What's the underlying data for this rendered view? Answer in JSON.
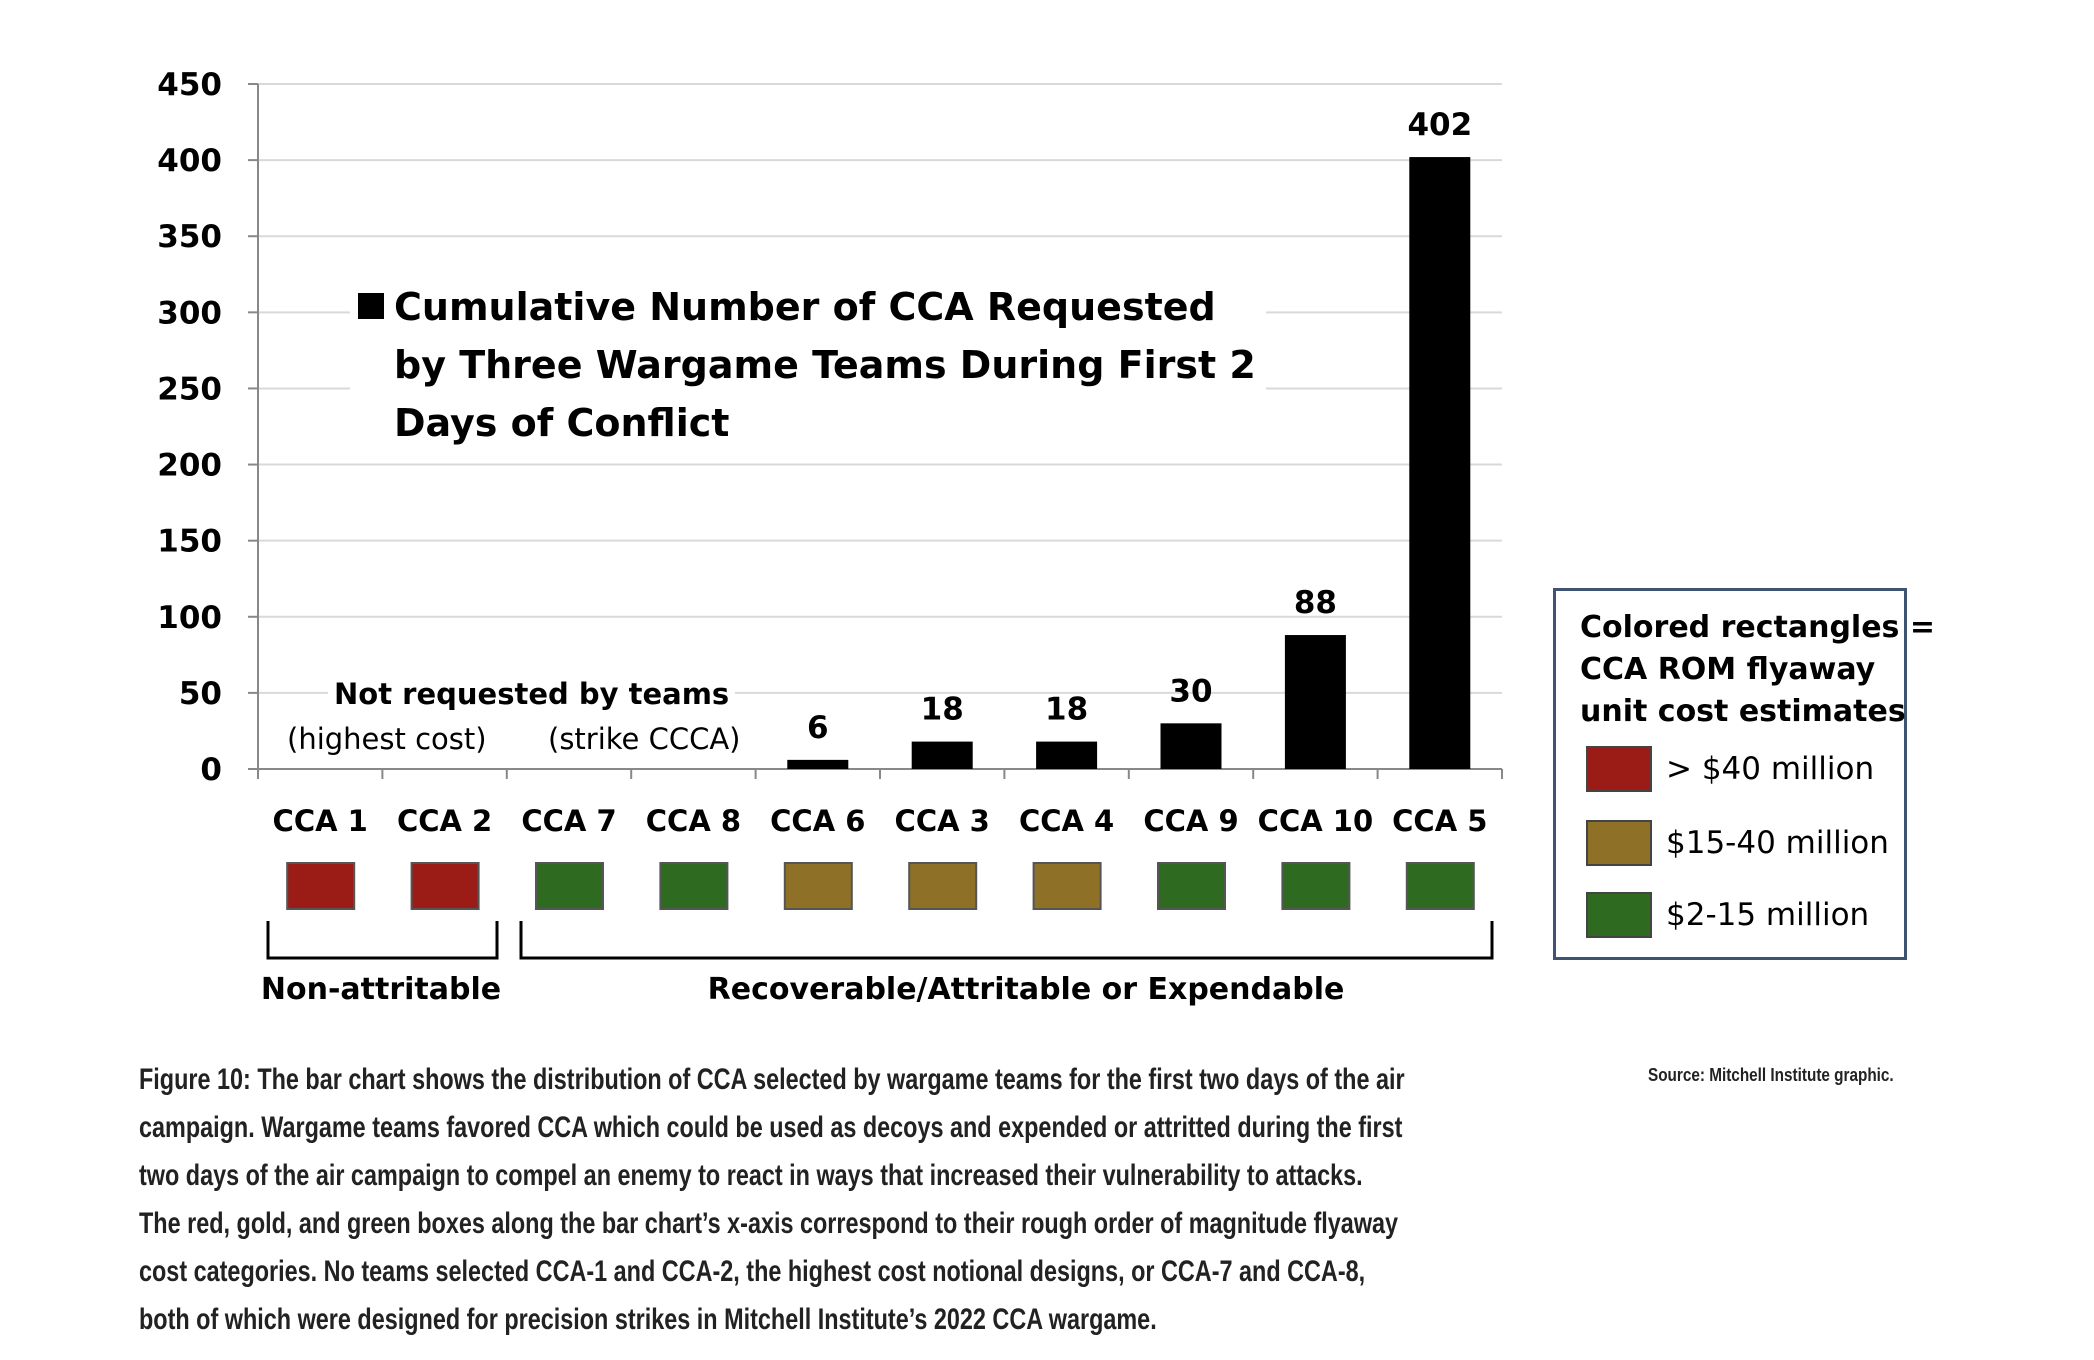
{
  "chart_data": {
    "type": "bar",
    "title": "Cumulative Number of CCA Requested by Three Wargame Teams During First 2 Days of Conflict",
    "title_lines": [
      "Cumulative Number of CCA Requested",
      "by Three Wargame Teams During First 2",
      "Days of Conflict"
    ],
    "categories": [
      "CCA 1",
      "CCA 2",
      "CCA 7",
      "CCA 8",
      "CCA 6",
      "CCA 3",
      "CCA 4",
      "CCA 9",
      "CCA 10",
      "CCA 5"
    ],
    "values": [
      0,
      0,
      0,
      0,
      6,
      18,
      18,
      30,
      88,
      402
    ],
    "data_labels": [
      "",
      "",
      "",
      "",
      "6",
      "18",
      "18",
      "30",
      "88",
      "402"
    ],
    "cost_category": [
      "high",
      "high",
      "low",
      "low",
      "mid",
      "mid",
      "mid",
      "low",
      "low",
      "low"
    ],
    "ylim": [
      0,
      450
    ],
    "yticks": [
      0,
      50,
      100,
      150,
      200,
      250,
      300,
      350,
      400,
      450
    ],
    "grid": true,
    "bar_color": "#000000",
    "xlabel": "",
    "ylabel": "",
    "annotations": {
      "not_requested": "Not requested by teams",
      "highest_cost": "(highest cost)",
      "strike": "(strike CCCA)"
    },
    "groups": {
      "non_attritable": "Non-attritable",
      "recoverable": "Recoverable/Attritable or Expendable"
    },
    "legend": {
      "placement": "right",
      "title_lines": [
        "Colored rectangles =",
        "CCA ROM flyaway",
        "unit cost estimates"
      ],
      "items": [
        {
          "key": "high",
          "label": "> $40 million",
          "color": "#9b1c16"
        },
        {
          "key": "mid",
          "label": "$15-40 million",
          "color": "#8e7126"
        },
        {
          "key": "low",
          "label": "$2-15 million",
          "color": "#2e6a20"
        }
      ]
    }
  },
  "caption": {
    "lines": [
      "Figure 10: The bar chart shows the distribution of CCA selected by wargame teams for the first two days of the air",
      "campaign. Wargame teams favored CCA which could be used as decoys and expended or attritted during the first",
      "two days of the air campaign to compel an enemy to react in ways that increased their vulnerability to attacks.",
      "The red, gold, and green boxes along the bar chart’s x-axis correspond to their rough order of magnitude flyaway",
      "cost categories. No teams selected CCA-1 and CCA-2, the highest cost notional designs, or CCA-7 and CCA-8,",
      "both of which were designed for precision strikes in Mitchell Institute’s 2022 CCA wargame."
    ],
    "source": "Source: Mitchell Institute graphic."
  }
}
